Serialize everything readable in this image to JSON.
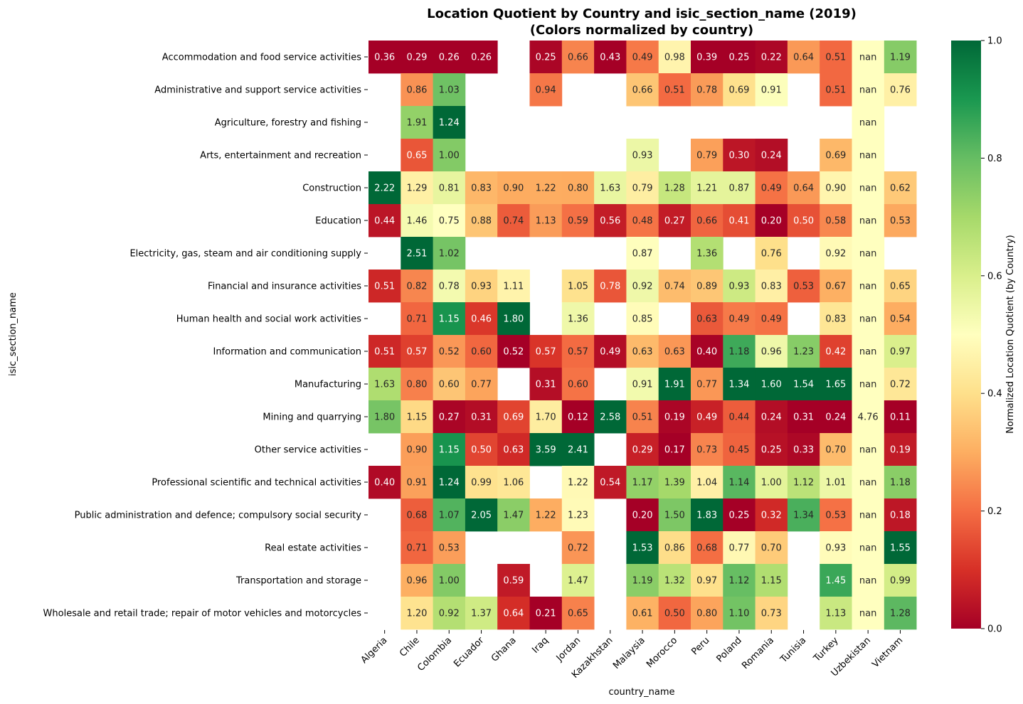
{
  "chart_data": {
    "type": "heatmap",
    "title_line1": "Location Quotient by Country and isic_section_name (2019)",
    "title_line2": "(Colors normalized by country)",
    "xlabel": "country_name",
    "ylabel": "isic_section_name",
    "colorbar_label": "Normalized Location Quotient (by Country)",
    "colorbar_range": [
      0,
      1
    ],
    "colorbar_ticks": [
      "0.0",
      "0.2",
      "0.4",
      "0.6",
      "0.8",
      "1.0"
    ],
    "colormap": "RdYlGn",
    "nan_label": "nan",
    "columns": [
      "Algeria",
      "Chile",
      "Colombia",
      "Ecuador",
      "Ghana",
      "Iraq",
      "Jordan",
      "Kazakhstan",
      "Malaysia",
      "Morocco",
      "Peru",
      "Poland",
      "Romania",
      "Tunisia",
      "Turkey",
      "Uzbekistan",
      "Vietnam"
    ],
    "rows": [
      "Accommodation and food service activities",
      "Administrative and support service activities",
      "Agriculture, forestry and fishing ",
      "Arts, entertainment and recreation ",
      "Construction",
      "Education",
      "Electricity, gas, steam and air conditioning supply",
      "Financial and insurance activities",
      "Human health and social work activities",
      "Information and communication",
      "Manufacturing",
      "Mining and quarrying",
      "Other service activities",
      "Professional scientific and technical activities",
      "Public administration and defence; compulsory social security",
      "Real estate activities",
      "Transportation and storage",
      "Wholesale and retail trade; repair of motor vehicles and motorcycles"
    ],
    "values": [
      [
        0.36,
        0.29,
        0.26,
        0.26,
        null,
        0.25,
        0.66,
        0.43,
        0.49,
        0.98,
        0.39,
        0.25,
        0.22,
        0.64,
        0.51,
        "nan",
        1.19
      ],
      [
        null,
        0.86,
        1.03,
        null,
        null,
        0.94,
        null,
        null,
        0.66,
        0.51,
        0.78,
        0.69,
        0.91,
        null,
        0.51,
        "nan",
        0.76
      ],
      [
        null,
        1.91,
        1.24,
        null,
        null,
        null,
        null,
        null,
        null,
        null,
        null,
        null,
        null,
        null,
        null,
        "nan",
        null
      ],
      [
        null,
        0.65,
        1.0,
        null,
        null,
        null,
        null,
        null,
        0.93,
        null,
        0.79,
        0.3,
        0.24,
        null,
        0.69,
        "nan",
        null
      ],
      [
        2.22,
        1.29,
        0.81,
        0.83,
        0.9,
        1.22,
        0.8,
        1.63,
        0.79,
        1.28,
        1.21,
        0.87,
        0.49,
        0.64,
        0.9,
        "nan",
        0.62
      ],
      [
        0.44,
        1.46,
        0.75,
        0.88,
        0.74,
        1.13,
        0.59,
        0.56,
        0.48,
        0.27,
        0.66,
        0.41,
        0.2,
        0.5,
        0.58,
        "nan",
        0.53
      ],
      [
        null,
        2.51,
        1.02,
        null,
        null,
        null,
        null,
        null,
        0.87,
        null,
        1.36,
        null,
        0.76,
        null,
        0.92,
        "nan",
        null
      ],
      [
        0.51,
        0.82,
        0.78,
        0.93,
        1.11,
        null,
        1.05,
        0.78,
        0.92,
        0.74,
        0.89,
        0.93,
        0.83,
        0.53,
        0.67,
        "nan",
        0.65
      ],
      [
        null,
        0.71,
        1.15,
        0.46,
        1.8,
        null,
        1.36,
        null,
        0.85,
        null,
        0.63,
        0.49,
        0.49,
        null,
        0.83,
        "nan",
        0.54
      ],
      [
        0.51,
        0.57,
        0.52,
        0.6,
        0.52,
        0.57,
        0.57,
        0.49,
        0.63,
        0.63,
        0.4,
        1.18,
        0.96,
        1.23,
        0.42,
        "nan",
        0.97
      ],
      [
        1.63,
        0.8,
        0.6,
        0.77,
        null,
        0.31,
        0.6,
        null,
        0.91,
        1.91,
        0.77,
        1.34,
        1.6,
        1.54,
        1.65,
        "nan",
        0.72
      ],
      [
        1.8,
        1.15,
        0.27,
        0.31,
        0.69,
        1.7,
        0.12,
        2.58,
        0.51,
        0.19,
        0.49,
        0.44,
        0.24,
        0.31,
        0.24,
        4.76,
        0.11
      ],
      [
        null,
        0.9,
        1.15,
        0.5,
        0.63,
        3.59,
        2.41,
        null,
        0.29,
        0.17,
        0.73,
        0.45,
        0.25,
        0.33,
        0.7,
        "nan",
        0.19
      ],
      [
        0.4,
        0.91,
        1.24,
        0.99,
        1.06,
        null,
        1.22,
        0.54,
        1.17,
        1.39,
        1.04,
        1.14,
        1.0,
        1.12,
        1.01,
        "nan",
        1.18
      ],
      [
        null,
        0.68,
        1.07,
        2.05,
        1.47,
        1.22,
        1.23,
        null,
        0.2,
        1.5,
        1.83,
        0.25,
        0.32,
        1.34,
        0.53,
        "nan",
        0.18
      ],
      [
        null,
        0.71,
        0.53,
        null,
        null,
        null,
        0.72,
        null,
        1.53,
        0.86,
        0.68,
        0.77,
        0.7,
        null,
        0.93,
        "nan",
        1.55
      ],
      [
        null,
        0.96,
        1.0,
        null,
        0.59,
        null,
        1.47,
        null,
        1.19,
        1.32,
        0.97,
        1.12,
        1.15,
        null,
        1.45,
        "nan",
        0.99
      ],
      [
        null,
        1.2,
        0.92,
        1.37,
        0.64,
        0.21,
        0.65,
        null,
        0.61,
        0.5,
        0.8,
        1.1,
        0.73,
        null,
        1.13,
        "nan",
        1.28
      ]
    ]
  }
}
